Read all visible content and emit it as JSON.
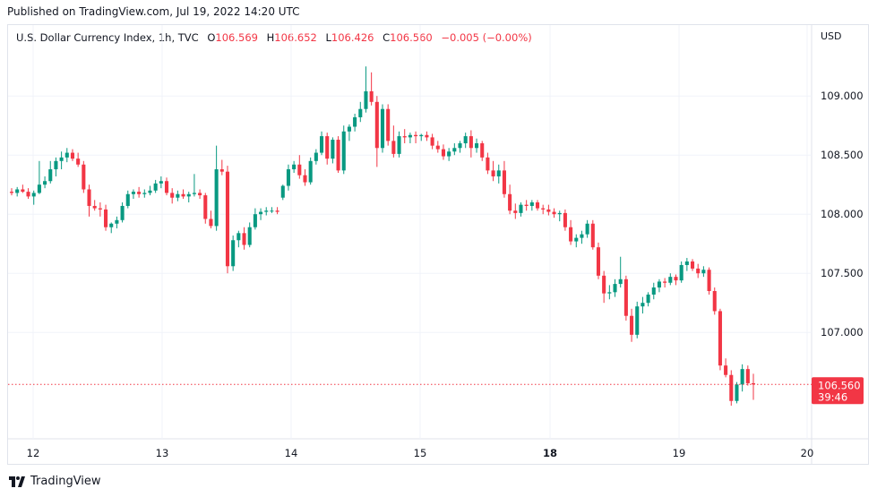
{
  "published": "Published on TradingView.com, Jul 19, 2022 14:20 UTC",
  "footer": {
    "brand": "TradingView",
    "logo_icon": "tradingview-logo-icon"
  },
  "header": {
    "symbol": "U.S. Dollar Currency Index, 1h, TVC",
    "open_label": "O",
    "open": "106.569",
    "high_label": "H",
    "high": "106.652",
    "low_label": "L",
    "low": "106.426",
    "close_label": "C",
    "close": "106.560",
    "change": "−0.005 (−0.00%)",
    "currency": "USD"
  },
  "price_tag": {
    "price": "106.560",
    "countdown": "39:46"
  },
  "colors": {
    "up": "#089981",
    "down": "#f23645",
    "grid": "#f0f3fa",
    "axis_text": "#131722"
  },
  "chart_data": {
    "type": "candlestick",
    "x_ticks": [
      "12",
      "13",
      "14",
      "15",
      "18",
      "19",
      "20"
    ],
    "x_tick_bold": [
      "18"
    ],
    "y_ticks": [
      "109.000",
      "108.500",
      "108.000",
      "107.500",
      "107.000"
    ],
    "ylim": [
      106.1,
      109.6
    ],
    "grid": true,
    "last_price": 106.56,
    "candles": [
      [
        108.19,
        108.22,
        108.16,
        108.18
      ],
      [
        108.18,
        108.23,
        108.15,
        108.21
      ],
      [
        108.21,
        108.25,
        108.18,
        108.19
      ],
      [
        108.19,
        108.22,
        108.13,
        108.15
      ],
      [
        108.15,
        108.2,
        108.08,
        108.18
      ],
      [
        108.18,
        108.45,
        108.17,
        108.25
      ],
      [
        108.25,
        108.32,
        108.22,
        108.28
      ],
      [
        108.28,
        108.45,
        108.26,
        108.38
      ],
      [
        108.38,
        108.48,
        108.32,
        108.45
      ],
      [
        108.45,
        108.53,
        108.38,
        108.48
      ],
      [
        108.48,
        108.56,
        108.44,
        108.52
      ],
      [
        108.52,
        108.55,
        108.45,
        108.47
      ],
      [
        108.47,
        108.52,
        108.4,
        108.42
      ],
      [
        108.42,
        108.45,
        108.18,
        108.21
      ],
      [
        108.21,
        108.25,
        107.98,
        108.07
      ],
      [
        108.07,
        108.12,
        108.03,
        108.05
      ],
      [
        108.05,
        108.1,
        107.98,
        108.04
      ],
      [
        108.04,
        108.08,
        107.86,
        107.89
      ],
      [
        107.89,
        107.93,
        107.84,
        107.92
      ],
      [
        107.92,
        107.98,
        107.88,
        107.95
      ],
      [
        107.95,
        108.1,
        107.93,
        108.07
      ],
      [
        108.07,
        108.2,
        108.05,
        108.17
      ],
      [
        108.17,
        108.21,
        108.13,
        108.19
      ],
      [
        108.19,
        108.23,
        108.14,
        108.17
      ],
      [
        108.17,
        108.21,
        108.14,
        108.18
      ],
      [
        108.18,
        108.24,
        108.16,
        108.2
      ],
      [
        108.2,
        108.29,
        108.18,
        108.26
      ],
      [
        108.26,
        108.32,
        108.22,
        108.28
      ],
      [
        108.28,
        108.31,
        108.16,
        108.18
      ],
      [
        108.18,
        108.22,
        108.09,
        108.14
      ],
      [
        108.14,
        108.2,
        108.11,
        108.17
      ],
      [
        108.17,
        108.21,
        108.13,
        108.15
      ],
      [
        108.15,
        108.19,
        108.1,
        108.17
      ],
      [
        108.17,
        108.34,
        108.15,
        108.18
      ],
      [
        108.18,
        108.21,
        108.13,
        108.16
      ],
      [
        108.16,
        108.18,
        107.92,
        107.96
      ],
      [
        107.96,
        108.03,
        107.88,
        107.9
      ],
      [
        107.9,
        108.58,
        107.86,
        108.38
      ],
      [
        108.38,
        108.46,
        108.33,
        108.36
      ],
      [
        108.36,
        108.41,
        107.5,
        107.56
      ],
      [
        107.56,
        107.82,
        107.52,
        107.78
      ],
      [
        107.78,
        107.86,
        107.72,
        107.84
      ],
      [
        107.84,
        107.89,
        107.7,
        107.74
      ],
      [
        107.74,
        107.93,
        107.72,
        107.89
      ],
      [
        107.89,
        108.05,
        107.87,
        108.0
      ],
      [
        108.0,
        108.05,
        107.95,
        108.02
      ],
      [
        108.02,
        108.06,
        107.99,
        108.03
      ],
      [
        108.03,
        108.06,
        108.01,
        108.03
      ],
      [
        108.03,
        108.06,
        108.0,
        108.02
      ],
      [
        108.14,
        108.25,
        108.12,
        108.24
      ],
      [
        108.24,
        108.42,
        108.2,
        108.38
      ],
      [
        108.38,
        108.45,
        108.35,
        108.42
      ],
      [
        108.42,
        108.5,
        108.3,
        108.33
      ],
      [
        108.33,
        108.38,
        108.24,
        108.27
      ],
      [
        108.27,
        108.48,
        108.25,
        108.45
      ],
      [
        108.45,
        108.55,
        108.42,
        108.52
      ],
      [
        108.52,
        108.7,
        108.5,
        108.66
      ],
      [
        108.66,
        108.69,
        108.42,
        108.47
      ],
      [
        108.47,
        108.65,
        108.43,
        108.63
      ],
      [
        108.63,
        108.66,
        108.35,
        108.37
      ],
      [
        108.37,
        108.75,
        108.34,
        108.7
      ],
      [
        108.7,
        108.76,
        108.62,
        108.74
      ],
      [
        108.74,
        108.85,
        108.7,
        108.82
      ],
      [
        108.82,
        108.95,
        108.78,
        108.89
      ],
      [
        108.89,
        109.25,
        108.86,
        109.04
      ],
      [
        109.04,
        109.2,
        108.92,
        108.95
      ],
      [
        108.95,
        109.0,
        108.4,
        108.56
      ],
      [
        108.56,
        108.93,
        108.52,
        108.89
      ],
      [
        108.89,
        108.93,
        108.58,
        108.62
      ],
      [
        108.62,
        108.75,
        108.48,
        108.51
      ],
      [
        108.51,
        108.7,
        108.48,
        108.66
      ],
      [
        108.66,
        108.72,
        108.6,
        108.65
      ],
      [
        108.65,
        108.69,
        108.6,
        108.67
      ],
      [
        108.67,
        108.7,
        108.6,
        108.66
      ],
      [
        108.66,
        108.68,
        108.62,
        108.67
      ],
      [
        108.67,
        108.7,
        108.62,
        108.65
      ],
      [
        108.65,
        108.68,
        108.55,
        108.58
      ],
      [
        108.58,
        108.62,
        108.52,
        108.55
      ],
      [
        108.55,
        108.59,
        108.46,
        108.49
      ],
      [
        108.49,
        108.56,
        108.45,
        108.53
      ],
      [
        108.53,
        108.6,
        108.5,
        108.56
      ],
      [
        108.56,
        108.62,
        108.52,
        108.6
      ],
      [
        108.6,
        108.69,
        108.56,
        108.66
      ],
      [
        108.66,
        108.71,
        108.48,
        108.56
      ],
      [
        108.56,
        108.64,
        108.52,
        108.6
      ],
      [
        108.6,
        108.62,
        108.45,
        108.48
      ],
      [
        108.48,
        108.52,
        108.34,
        108.37
      ],
      [
        108.37,
        108.45,
        108.28,
        108.32
      ],
      [
        108.32,
        108.42,
        108.26,
        108.37
      ],
      [
        108.37,
        108.45,
        108.14,
        108.17
      ],
      [
        108.17,
        108.25,
        108.0,
        108.03
      ],
      [
        108.03,
        108.09,
        107.96,
        108.01
      ],
      [
        108.01,
        108.1,
        107.98,
        108.08
      ],
      [
        108.08,
        108.12,
        108.03,
        108.07
      ],
      [
        108.07,
        108.12,
        108.03,
        108.1
      ],
      [
        108.1,
        108.12,
        108.03,
        108.05
      ],
      [
        108.05,
        108.08,
        108.0,
        108.04
      ],
      [
        108.04,
        108.08,
        107.99,
        108.02
      ],
      [
        108.02,
        108.05,
        107.97,
        108.0
      ],
      [
        108.0,
        108.03,
        107.94,
        108.01
      ],
      [
        108.01,
        108.04,
        107.86,
        107.89
      ],
      [
        107.89,
        107.95,
        107.74,
        107.77
      ],
      [
        107.77,
        107.83,
        107.72,
        107.8
      ],
      [
        107.8,
        107.86,
        107.75,
        107.83
      ],
      [
        107.83,
        107.95,
        107.8,
        107.92
      ],
      [
        107.92,
        107.95,
        107.7,
        107.72
      ],
      [
        107.72,
        107.76,
        107.45,
        107.48
      ],
      [
        107.48,
        107.52,
        107.25,
        107.33
      ],
      [
        107.33,
        107.4,
        107.28,
        107.34
      ],
      [
        107.34,
        107.45,
        107.3,
        107.41
      ],
      [
        107.41,
        107.64,
        107.38,
        107.45
      ],
      [
        107.45,
        107.48,
        107.1,
        107.14
      ],
      [
        107.14,
        107.2,
        106.92,
        106.98
      ],
      [
        106.98,
        107.26,
        106.95,
        107.22
      ],
      [
        107.22,
        107.3,
        107.16,
        107.25
      ],
      [
        107.25,
        107.34,
        107.22,
        107.32
      ],
      [
        107.32,
        107.42,
        107.28,
        107.38
      ],
      [
        107.38,
        107.45,
        107.34,
        107.43
      ],
      [
        107.43,
        107.46,
        107.38,
        107.42
      ],
      [
        107.42,
        107.5,
        107.4,
        107.47
      ],
      [
        107.47,
        107.49,
        107.4,
        107.44
      ],
      [
        107.44,
        107.6,
        107.42,
        107.57
      ],
      [
        107.57,
        107.63,
        107.52,
        107.6
      ],
      [
        107.6,
        107.62,
        107.52,
        107.54
      ],
      [
        107.54,
        107.58,
        107.46,
        107.5
      ],
      [
        107.5,
        107.56,
        107.47,
        107.53
      ],
      [
        107.53,
        107.55,
        107.32,
        107.35
      ],
      [
        107.35,
        107.38,
        107.15,
        107.18
      ],
      [
        107.18,
        107.2,
        106.68,
        106.72
      ],
      [
        106.72,
        106.78,
        106.62,
        106.64
      ],
      [
        106.64,
        106.68,
        106.38,
        106.42
      ],
      [
        106.42,
        106.58,
        106.4,
        106.56
      ],
      [
        106.56,
        106.73,
        106.5,
        106.69
      ],
      [
        106.69,
        106.72,
        106.55,
        106.57
      ],
      [
        106.57,
        106.65,
        106.43,
        106.56
      ]
    ]
  }
}
